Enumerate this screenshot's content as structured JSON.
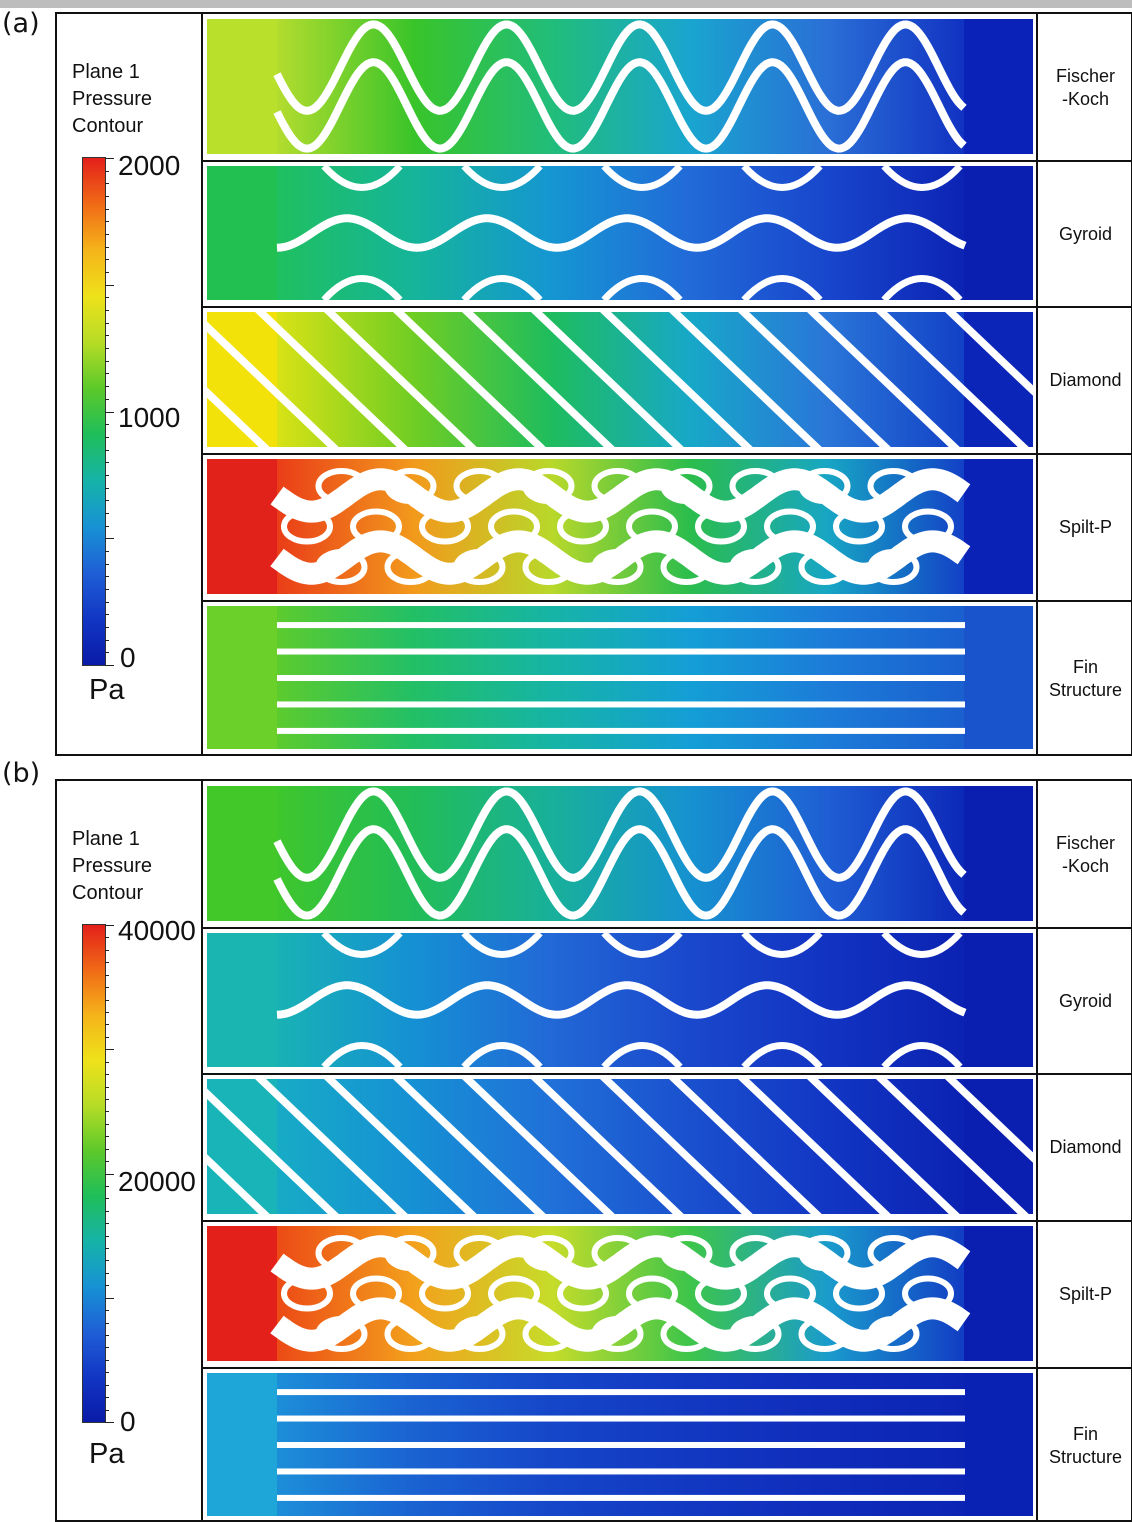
{
  "figure": {
    "panels": [
      {
        "label": "(a)",
        "legend": {
          "title_lines": [
            "Plane 1",
            "Pressure",
            "Contour"
          ],
          "max": "2000",
          "mid": "1000",
          "min": "0",
          "unit": "Pa"
        },
        "rows": [
          {
            "name_lines": [
              "Fischer",
              "-Koch"
            ],
            "pattern": "fischer-koch",
            "inlet_color": "#b9e02a",
            "outlet_color": "#0a22b8",
            "field": [
              "#b3dc2e",
              "#39c42a",
              "#21bd7a",
              "#19a5cf",
              "#2a6fd6",
              "#1132c2"
            ]
          },
          {
            "name_lines": [
              "Gyroid"
            ],
            "pattern": "gyroid",
            "inlet_color": "#22c050",
            "outlet_color": "#0a1fb0",
            "field": [
              "#1fc060",
              "#15b49a",
              "#1596d2",
              "#226ad8",
              "#1846cc",
              "#0c23b4"
            ]
          },
          {
            "name_lines": [
              "Diamond"
            ],
            "pattern": "diamond",
            "inlet_color": "#f3e10a",
            "outlet_color": "#0b25b8",
            "field": [
              "#d8e216",
              "#6fcd24",
              "#1ebc5e",
              "#17a8c8",
              "#2a76d8",
              "#1240c6"
            ]
          },
          {
            "name_lines": [
              "Spilt-P"
            ],
            "pattern": "split-p",
            "inlet_color": "#e0221a",
            "outlet_color": "#0a22b5",
            "field": [
              "#ea3d18",
              "#f29a1c",
              "#b8d82a",
              "#2bbd4c",
              "#17a6c4",
              "#1340c6"
            ]
          },
          {
            "name_lines": [
              "Fin",
              "Structure"
            ],
            "pattern": "fin",
            "inlet_color": "#6cd02a",
            "outlet_color": "#1a54cc",
            "field": [
              "#5ccb2e",
              "#22bf66",
              "#16b4a6",
              "#149ed6",
              "#1c7cd8",
              "#1a5fcf"
            ]
          }
        ]
      },
      {
        "label": "(b)",
        "legend": {
          "title_lines": [
            "Plane 1",
            "Pressure",
            "Contour"
          ],
          "max": "40000",
          "mid": "20000",
          "min": "0",
          "unit": "Pa"
        },
        "rows": [
          {
            "name_lines": [
              "Fischer",
              "-Koch"
            ],
            "pattern": "fischer-koch",
            "inlet_color": "#43c82a",
            "outlet_color": "#0a1fb0",
            "field": [
              "#3fc62c",
              "#22bd58",
              "#18b09a",
              "#1692d0",
              "#1f5ed4",
              "#0c28b8"
            ]
          },
          {
            "name_lines": [
              "Gyroid"
            ],
            "pattern": "gyroid",
            "inlet_color": "#1ab5b0",
            "outlet_color": "#0a1fb0",
            "field": [
              "#18b2b4",
              "#1590d4",
              "#2268d6",
              "#1a48cc",
              "#1233c2",
              "#0b22b2"
            ]
          },
          {
            "name_lines": [
              "Diamond"
            ],
            "pattern": "diamond",
            "inlet_color": "#19b4b8",
            "outlet_color": "#0a1fb0",
            "field": [
              "#17abc6",
              "#1690d4",
              "#2070d8",
              "#1a50ce",
              "#1236c4",
              "#0b22b2"
            ]
          },
          {
            "name_lines": [
              "Spilt-P"
            ],
            "pattern": "split-p",
            "inlet_color": "#e3201a",
            "outlet_color": "#0a1fb0",
            "field": [
              "#ec4a16",
              "#f3a11c",
              "#c6dc2a",
              "#3dc54a",
              "#1a9ccc",
              "#123cc4"
            ]
          },
          {
            "name_lines": [
              "Fin",
              "Structure"
            ],
            "pattern": "fin",
            "inlet_color": "#1fa6d8",
            "outlet_color": "#0a22b4",
            "field": [
              "#1c8ed8",
              "#1a62d2",
              "#1546c8",
              "#1238c2",
              "#0f2cba",
              "#0b24b4"
            ]
          }
        ]
      }
    ]
  }
}
